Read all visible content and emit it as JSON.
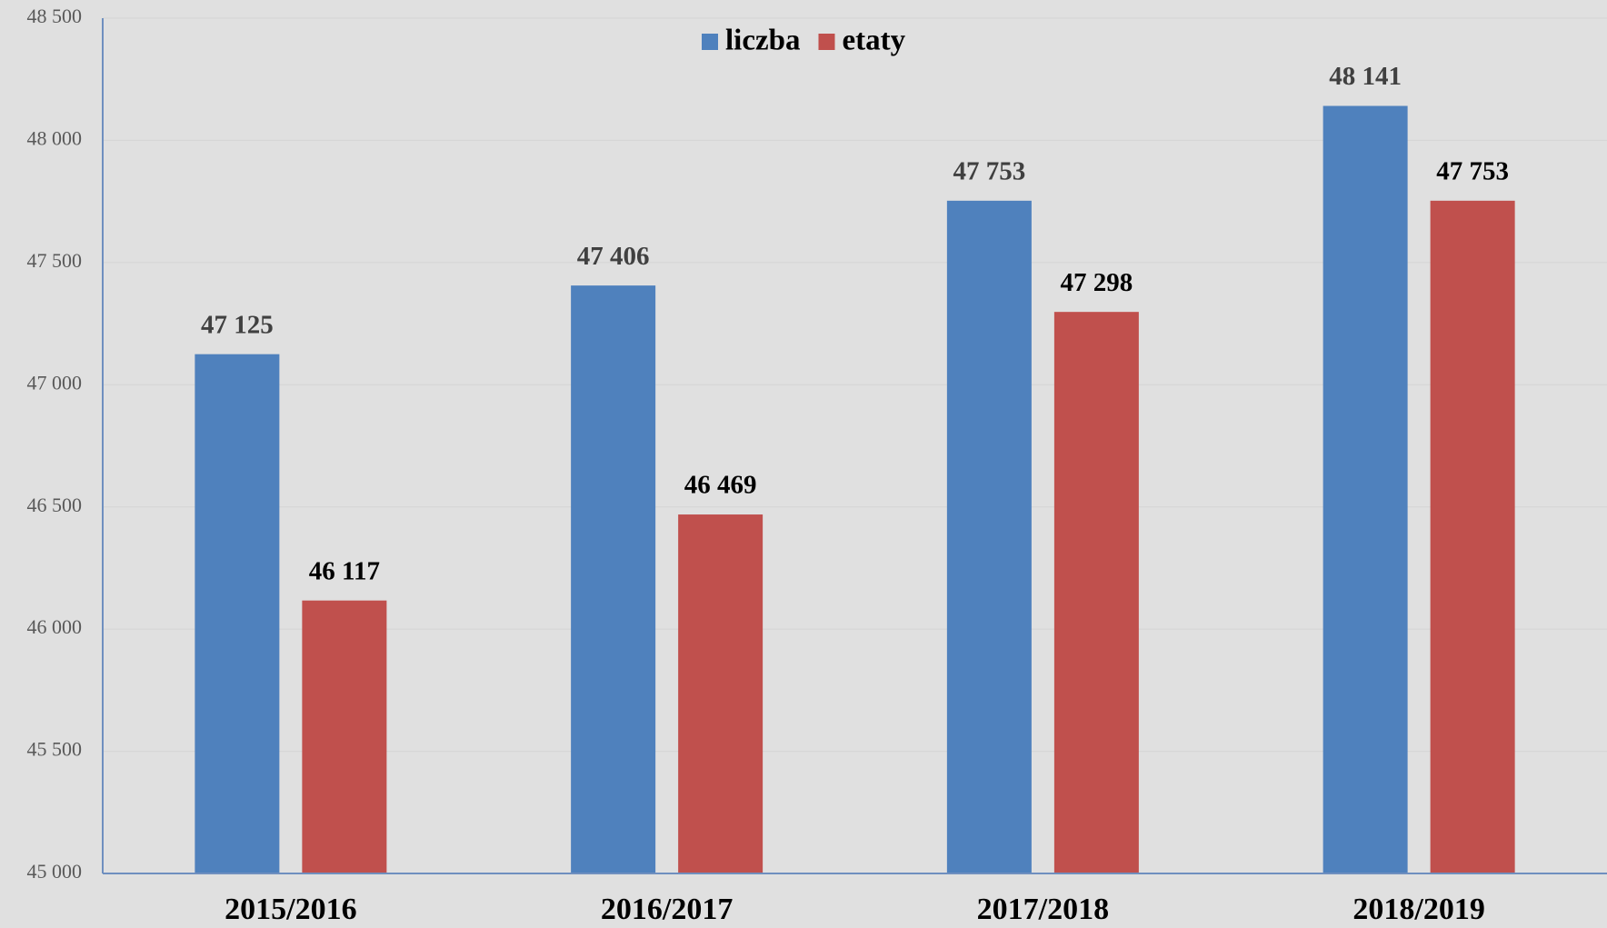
{
  "chart_data": {
    "type": "bar",
    "categories": [
      "2015/2016",
      "2016/2017",
      "2017/2018",
      "2018/2019"
    ],
    "series": [
      {
        "name": "liczba",
        "color": "#4f81bd",
        "values": [
          47125,
          47406,
          47753,
          48141
        ],
        "value_labels": [
          "47 125",
          "47 406",
          "47 753",
          "48 141"
        ]
      },
      {
        "name": "etaty",
        "color": "#c0504d",
        "values": [
          46117,
          46469,
          47298,
          47753
        ],
        "value_labels": [
          "46 117",
          "46 469",
          "47 298",
          "47 753"
        ]
      }
    ],
    "ylim": [
      45000,
      48500
    ],
    "yticks": [
      {
        "value": 45000,
        "label": "45 000"
      },
      {
        "value": 45500,
        "label": "45 500"
      },
      {
        "value": 46000,
        "label": "46 000"
      },
      {
        "value": 46500,
        "label": "46 500"
      },
      {
        "value": 47000,
        "label": "47 000"
      },
      {
        "value": 47500,
        "label": "47 500"
      },
      {
        "value": 48000,
        "label": "48 000"
      },
      {
        "value": 48500,
        "label": "48 500"
      }
    ],
    "grid": true,
    "legend": "top"
  }
}
